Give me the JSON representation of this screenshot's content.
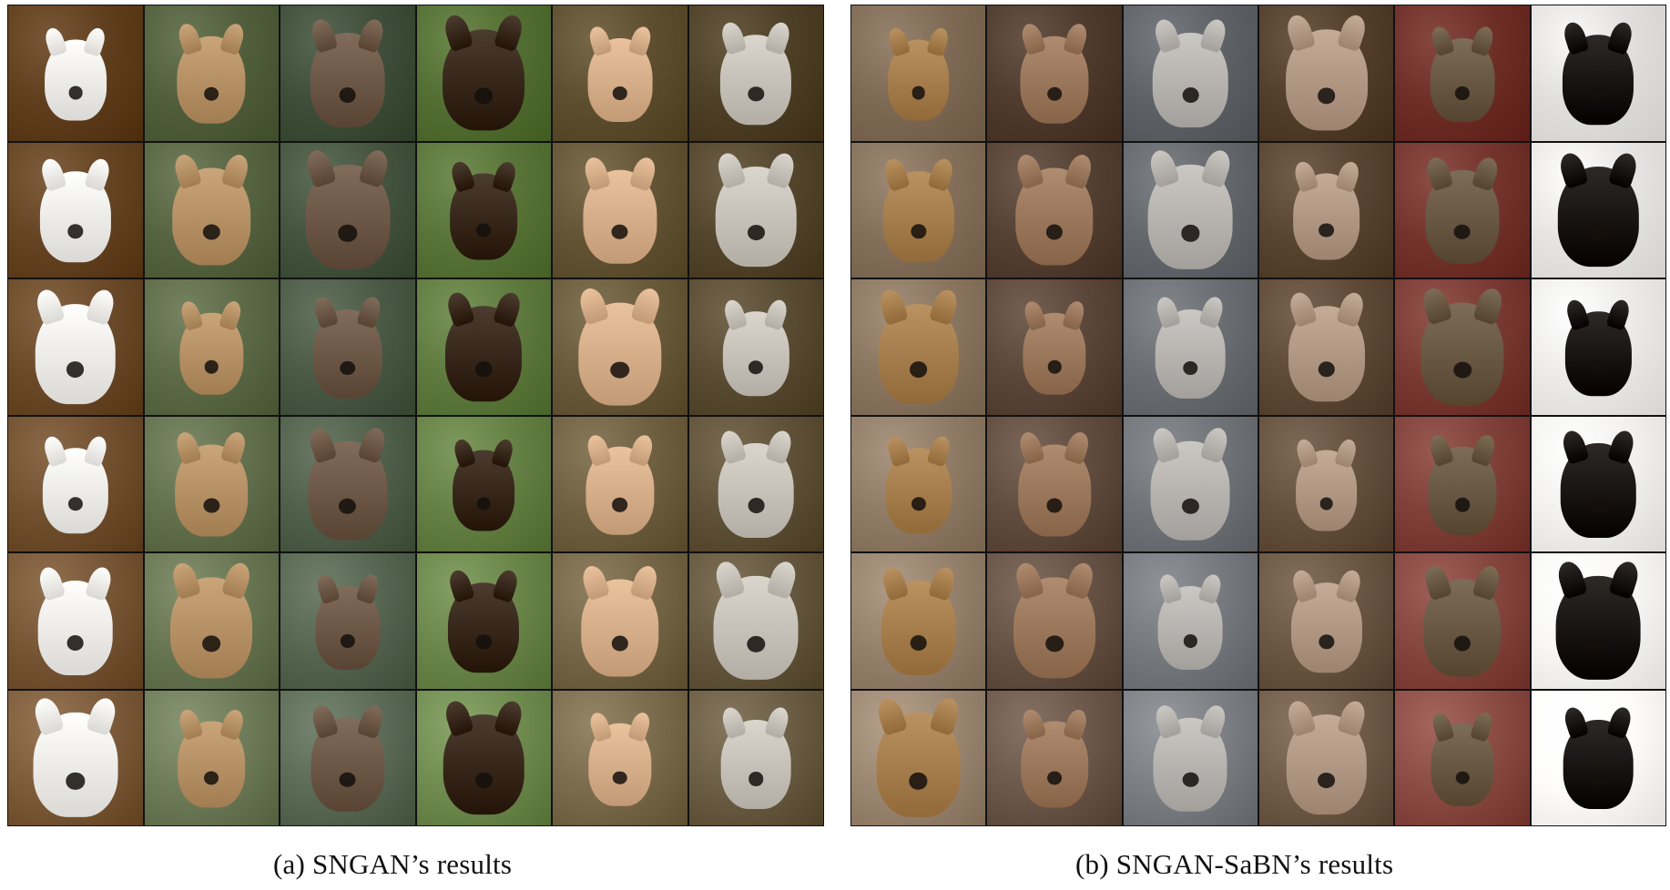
{
  "figure": {
    "panels": [
      {
        "caption": "(a) SNGAN’s results",
        "columns": [
          {
            "bg": "#6b4a2a",
            "dog": "#f1efeb"
          },
          {
            "bg": "#5d6a48",
            "dog": "#b89368"
          },
          {
            "bg": "#4a5a45",
            "dog": "#6f5a49"
          },
          {
            "bg": "#5f7a3e",
            "dog": "#3a2a1e"
          },
          {
            "bg": "#6a5a3c",
            "dog": "#d8b08c"
          },
          {
            "bg": "#5a4c33",
            "dog": "#c9c4bb"
          }
        ]
      },
      {
        "caption": "(b) SNGAN-SaBN’s results",
        "columns": [
          {
            "bg": "#8a7660",
            "dog": "#a8804f"
          },
          {
            "bg": "#5b463a",
            "dog": "#9d7a5e"
          },
          {
            "bg": "#6a6d72",
            "dog": "#b9b6b2"
          },
          {
            "bg": "#5f4a38",
            "dog": "#b39a86"
          },
          {
            "bg": "#7a3a34",
            "dog": "#6b5a46"
          },
          {
            "bg": "#ecebea",
            "dog": "#1b1715"
          }
        ]
      }
    ]
  }
}
